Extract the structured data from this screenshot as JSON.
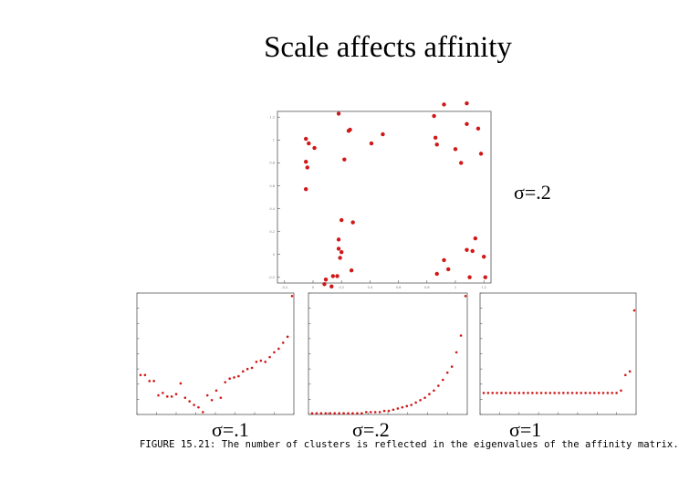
{
  "slide": {
    "title": "Scale affects affinity",
    "caption": "FIGURE 15.21: The number of clusters is reflected in the eigenvalues of the affinity matrix."
  },
  "chart_data": [
    {
      "type": "scatter",
      "label": "σ=.2",
      "xlim": [
        -0.25,
        1.25
      ],
      "ylim": [
        -0.25,
        1.25
      ],
      "xticks": [
        -0.2,
        0,
        0.2,
        0.4,
        0.6,
        0.8,
        1,
        1.2
      ],
      "yticks": [
        -0.2,
        0,
        0.2,
        0.4,
        0.6,
        0.8,
        1,
        1.2
      ],
      "grid": false,
      "color": "#d01818",
      "points": [
        [
          -0.05,
          1.01
        ],
        [
          -0.03,
          0.97
        ],
        [
          -0.05,
          0.81
        ],
        [
          -0.04,
          0.76
        ],
        [
          0.01,
          0.93
        ],
        [
          -0.05,
          0.57
        ],
        [
          0.18,
          1.23
        ],
        [
          0.25,
          1.08
        ],
        [
          0.26,
          1.09
        ],
        [
          0.22,
          0.83
        ],
        [
          0.41,
          0.97
        ],
        [
          0.49,
          1.05
        ],
        [
          0.85,
          1.21
        ],
        [
          0.92,
          1.31
        ],
        [
          0.86,
          1.02
        ],
        [
          0.87,
          0.96
        ],
        [
          1.08,
          1.32
        ],
        [
          1.08,
          1.14
        ],
        [
          1.16,
          1.1
        ],
        [
          1.0,
          0.92
        ],
        [
          1.04,
          0.8
        ],
        [
          1.18,
          0.88
        ],
        [
          0.2,
          0.3
        ],
        [
          0.28,
          0.28
        ],
        [
          0.18,
          0.13
        ],
        [
          0.18,
          0.05
        ],
        [
          0.19,
          -0.03
        ],
        [
          0.2,
          0.02
        ],
        [
          0.08,
          -0.26
        ],
        [
          0.14,
          -0.19
        ],
        [
          0.17,
          -0.19
        ],
        [
          0.09,
          -0.22
        ],
        [
          0.13,
          -0.28
        ],
        [
          0.27,
          -0.14
        ],
        [
          0.87,
          -0.17
        ],
        [
          0.92,
          -0.05
        ],
        [
          0.95,
          -0.13
        ],
        [
          1.08,
          0.04
        ],
        [
          1.12,
          0.03
        ],
        [
          1.14,
          0.14
        ],
        [
          1.2,
          -0.02
        ],
        [
          1.1,
          -0.2
        ],
        [
          1.21,
          -0.2
        ]
      ]
    },
    {
      "type": "scatter",
      "label": "σ=.1",
      "ylim": [
        0,
        1
      ],
      "color": "#d01818",
      "values": [
        0.33,
        0.33,
        0.28,
        0.28,
        0.16,
        0.18,
        0.15,
        0.15,
        0.17,
        0.26,
        0.14,
        0.11,
        0.08,
        0.06,
        0.02,
        0.16,
        0.12,
        0.2,
        0.14,
        0.27,
        0.3,
        0.31,
        0.32,
        0.36,
        0.38,
        0.39,
        0.44,
        0.45,
        0.44,
        0.48,
        0.52,
        0.55,
        0.6,
        0.65,
        0.99
      ]
    },
    {
      "type": "scatter",
      "label": "σ=.2",
      "ylim": [
        0,
        1
      ],
      "color": "#d01818",
      "values": [
        0.01,
        0.01,
        0.01,
        0.01,
        0.01,
        0.01,
        0.01,
        0.01,
        0.01,
        0.01,
        0.01,
        0.01,
        0.02,
        0.02,
        0.02,
        0.02,
        0.03,
        0.03,
        0.04,
        0.05,
        0.06,
        0.07,
        0.08,
        0.1,
        0.12,
        0.14,
        0.17,
        0.2,
        0.24,
        0.29,
        0.35,
        0.4,
        0.52,
        0.66,
        0.99
      ]
    },
    {
      "type": "scatter",
      "label": "σ=1",
      "ylim": [
        0,
        1
      ],
      "color": "#d01818",
      "values": [
        0.18,
        0.18,
        0.18,
        0.18,
        0.18,
        0.18,
        0.18,
        0.18,
        0.18,
        0.18,
        0.18,
        0.18,
        0.18,
        0.18,
        0.18,
        0.18,
        0.18,
        0.18,
        0.18,
        0.18,
        0.18,
        0.18,
        0.18,
        0.18,
        0.18,
        0.18,
        0.18,
        0.18,
        0.18,
        0.18,
        0.18,
        0.2,
        0.33,
        0.36,
        0.87
      ]
    }
  ]
}
